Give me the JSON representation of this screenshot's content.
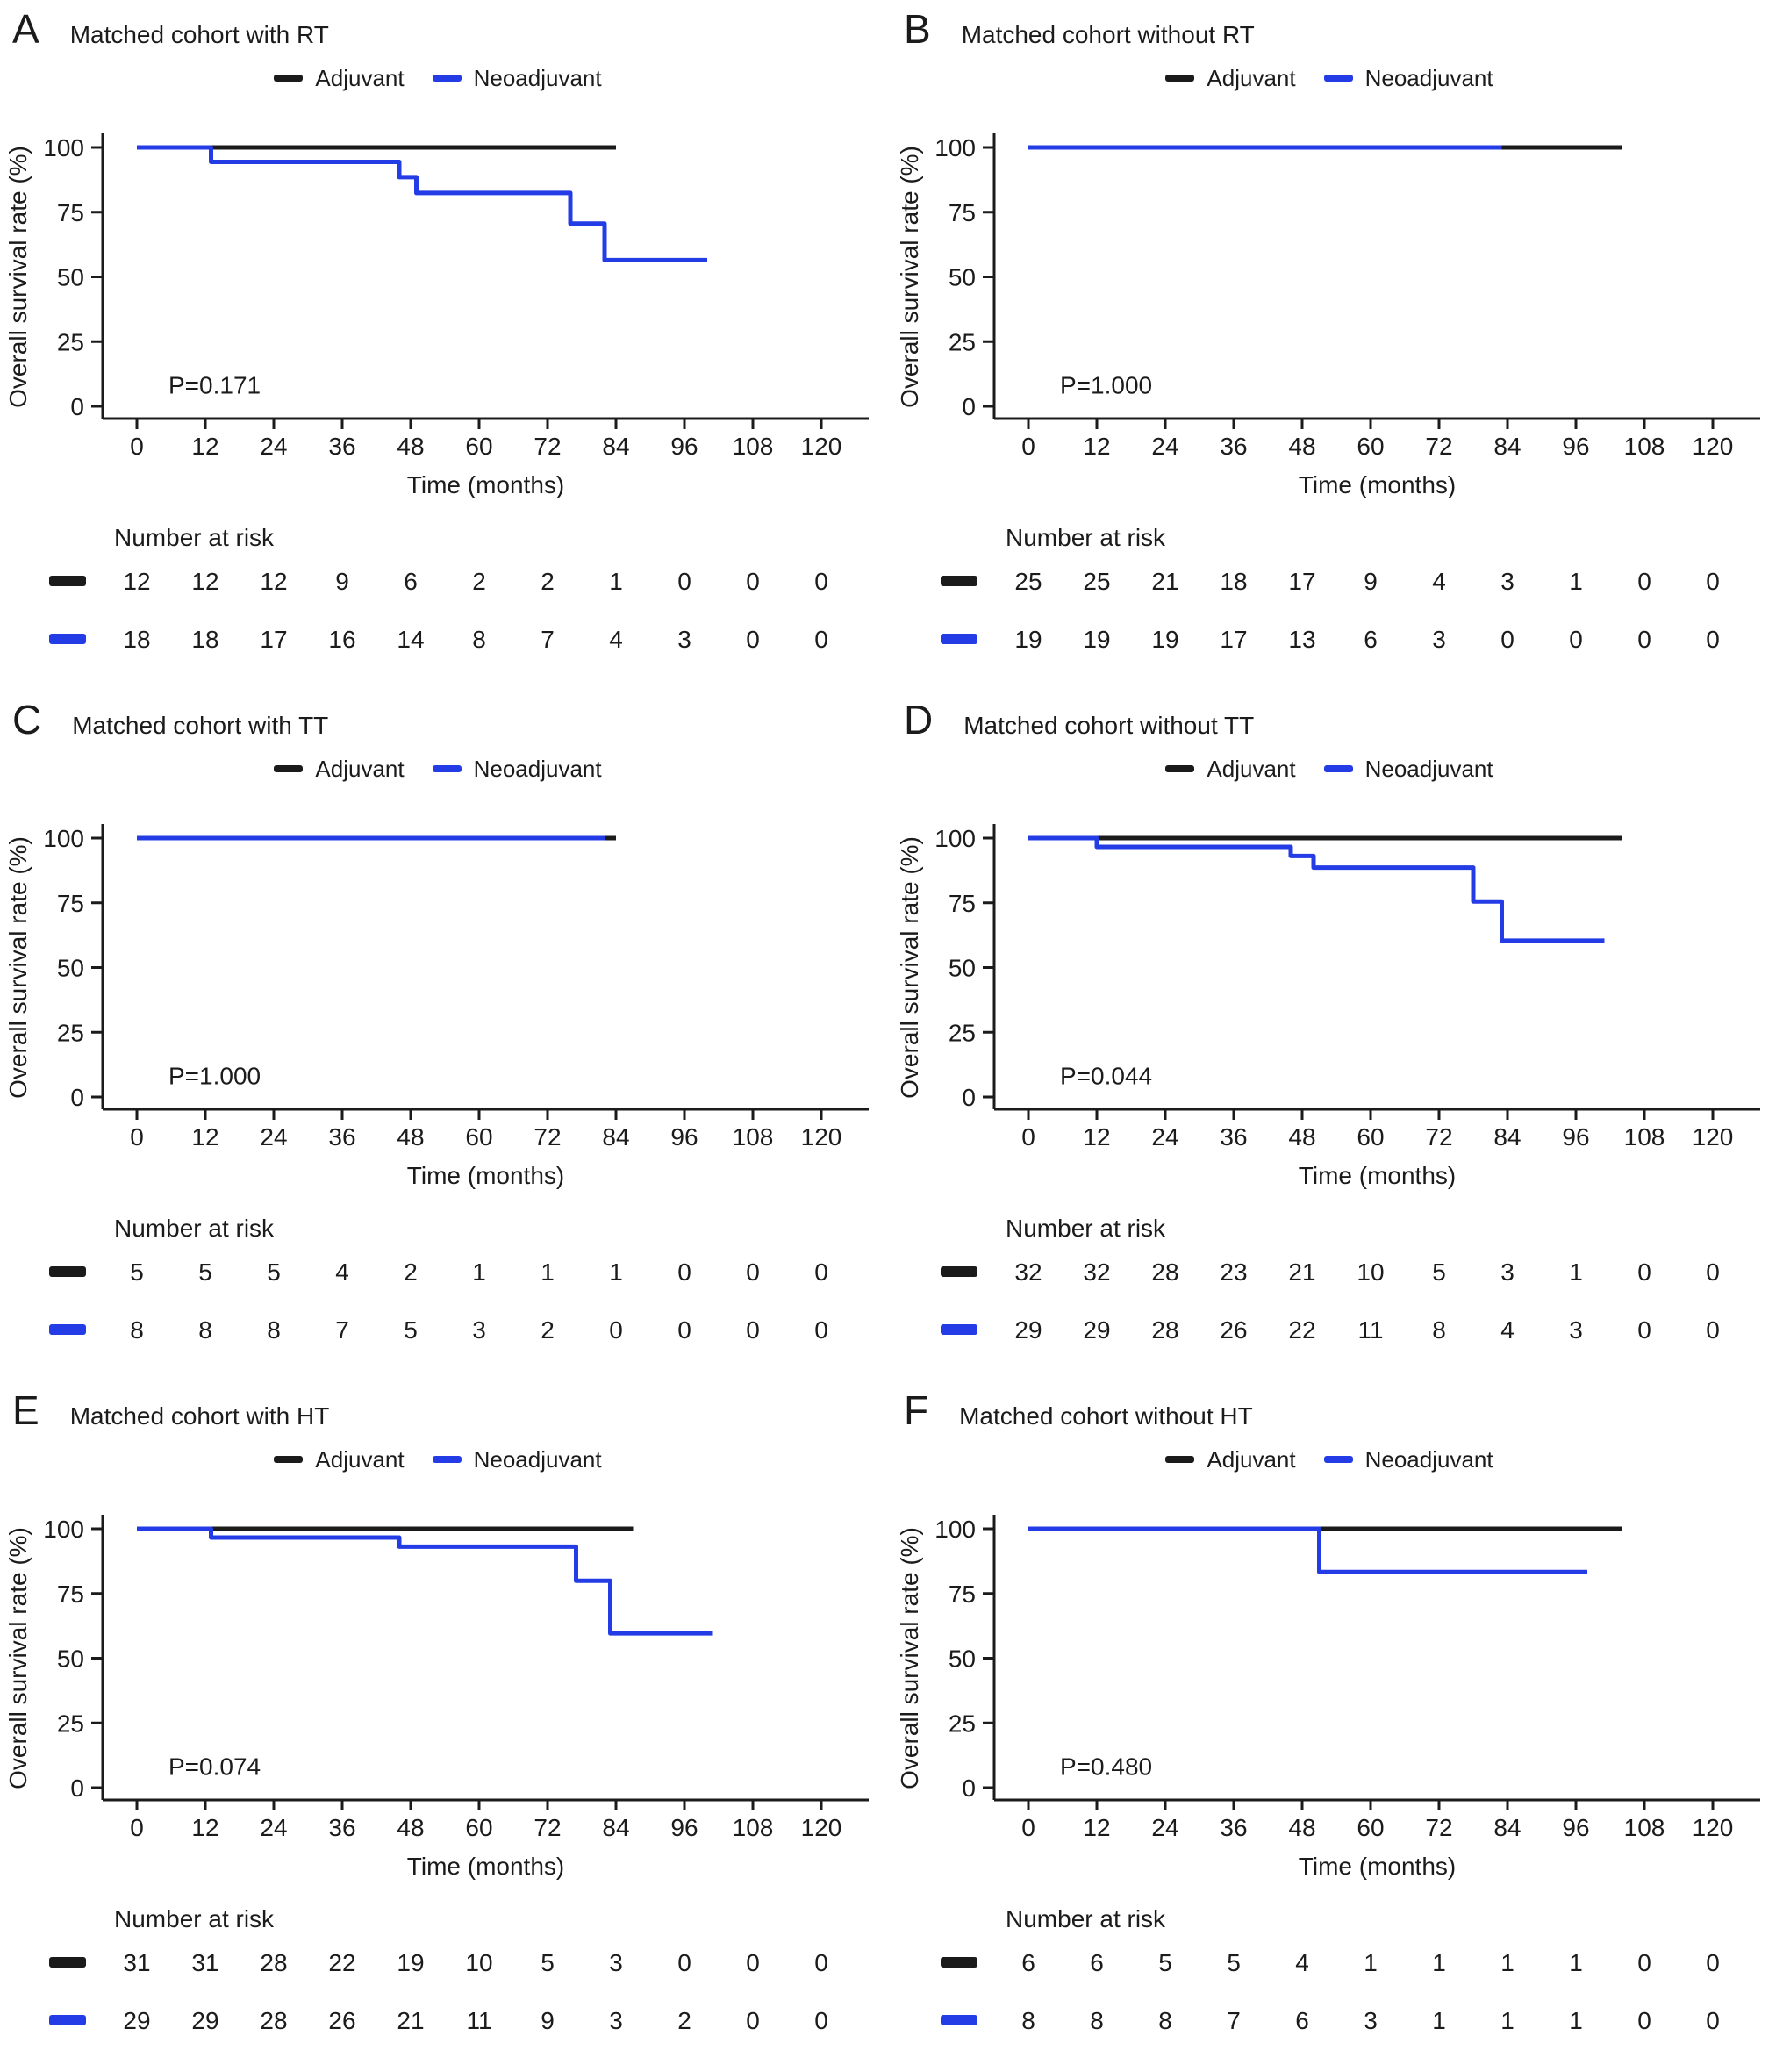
{
  "figure": {
    "legend": {
      "adjuvant_label": "Adjuvant",
      "neoadjuvant_label": "Neoadjuvant"
    },
    "y_axis_label": "Overall survival rate (%)",
    "x_axis_label": "Time (months)",
    "risk_header": "Number at risk",
    "colors": {
      "adjuvant": "#1b1b1b",
      "neoadjuvant": "#233CE6"
    }
  },
  "chart_data": [
    {
      "type": "line",
      "panel": "A",
      "title": "Matched cohort with RT",
      "p_value": "P=0.171",
      "xlabel": "Time (months)",
      "ylabel": "Overall survival rate (%)",
      "xlim": [
        0,
        120
      ],
      "ylim": [
        0,
        100
      ],
      "x_ticks": [
        0,
        12,
        24,
        36,
        48,
        60,
        72,
        84,
        96,
        108,
        120
      ],
      "y_ticks": [
        0,
        25,
        50,
        75,
        100
      ],
      "series": [
        {
          "name": "Adjuvant",
          "color": "#1b1b1b",
          "steps": [
            [
              0,
              100
            ],
            [
              84,
              100
            ]
          ]
        },
        {
          "name": "Neoadjuvant",
          "color": "#233CE6",
          "steps": [
            [
              0,
              100
            ],
            [
              13,
              94.4
            ],
            [
              46,
              88.5
            ],
            [
              49,
              82.4
            ],
            [
              76,
              70.6
            ],
            [
              82,
              56.5
            ],
            [
              100,
              56.5
            ]
          ]
        }
      ],
      "number_at_risk": {
        "times": [
          0,
          12,
          24,
          36,
          48,
          60,
          72,
          84,
          96,
          108,
          120
        ],
        "adjuvant": [
          12,
          12,
          12,
          9,
          6,
          2,
          2,
          1,
          0,
          0,
          0
        ],
        "neoadjuvant": [
          18,
          18,
          17,
          16,
          14,
          8,
          7,
          4,
          3,
          0,
          0
        ]
      }
    },
    {
      "type": "line",
      "panel": "B",
      "title": "Matched cohort without RT",
      "p_value": "P=1.000",
      "xlabel": "Time (months)",
      "ylabel": "Overall survival rate (%)",
      "xlim": [
        0,
        120
      ],
      "ylim": [
        0,
        100
      ],
      "x_ticks": [
        0,
        12,
        24,
        36,
        48,
        60,
        72,
        84,
        96,
        108,
        120
      ],
      "y_ticks": [
        0,
        25,
        50,
        75,
        100
      ],
      "series": [
        {
          "name": "Adjuvant",
          "color": "#1b1b1b",
          "steps": [
            [
              0,
              100
            ],
            [
              104,
              100
            ]
          ]
        },
        {
          "name": "Neoadjuvant",
          "color": "#233CE6",
          "steps": [
            [
              0,
              100
            ],
            [
              83,
              100
            ]
          ]
        }
      ],
      "number_at_risk": {
        "times": [
          0,
          12,
          24,
          36,
          48,
          60,
          72,
          84,
          96,
          108,
          120
        ],
        "adjuvant": [
          25,
          25,
          21,
          18,
          17,
          9,
          4,
          3,
          1,
          0,
          0
        ],
        "neoadjuvant": [
          19,
          19,
          19,
          17,
          13,
          6,
          3,
          0,
          0,
          0,
          0
        ]
      }
    },
    {
      "type": "line",
      "panel": "C",
      "title": "Matched cohort with TT",
      "p_value": "P=1.000",
      "xlabel": "Time (months)",
      "ylabel": "Overall survival rate (%)",
      "xlim": [
        0,
        120
      ],
      "ylim": [
        0,
        100
      ],
      "x_ticks": [
        0,
        12,
        24,
        36,
        48,
        60,
        72,
        84,
        96,
        108,
        120
      ],
      "y_ticks": [
        0,
        25,
        50,
        75,
        100
      ],
      "series": [
        {
          "name": "Adjuvant",
          "color": "#1b1b1b",
          "steps": [
            [
              0,
              100
            ],
            [
              84,
              100
            ]
          ]
        },
        {
          "name": "Neoadjuvant",
          "color": "#233CE6",
          "steps": [
            [
              0,
              100
            ],
            [
              82,
              100
            ]
          ]
        }
      ],
      "number_at_risk": {
        "times": [
          0,
          12,
          24,
          36,
          48,
          60,
          72,
          84,
          96,
          108,
          120
        ],
        "adjuvant": [
          5,
          5,
          5,
          4,
          2,
          1,
          1,
          1,
          0,
          0,
          0
        ],
        "neoadjuvant": [
          8,
          8,
          8,
          7,
          5,
          3,
          2,
          0,
          0,
          0,
          0
        ]
      }
    },
    {
      "type": "line",
      "panel": "D",
      "title": "Matched cohort without TT",
      "p_value": "P=0.044",
      "xlabel": "Time (months)",
      "ylabel": "Overall survival rate (%)",
      "xlim": [
        0,
        120
      ],
      "ylim": [
        0,
        100
      ],
      "x_ticks": [
        0,
        12,
        24,
        36,
        48,
        60,
        72,
        84,
        96,
        108,
        120
      ],
      "y_ticks": [
        0,
        25,
        50,
        75,
        100
      ],
      "series": [
        {
          "name": "Adjuvant",
          "color": "#1b1b1b",
          "steps": [
            [
              0,
              100
            ],
            [
              104,
              100
            ]
          ]
        },
        {
          "name": "Neoadjuvant",
          "color": "#233CE6",
          "steps": [
            [
              0,
              100
            ],
            [
              12,
              96.6
            ],
            [
              46,
              93.1
            ],
            [
              50,
              88.6
            ],
            [
              78,
              75.5
            ],
            [
              83,
              60.4
            ],
            [
              101,
              60.4
            ]
          ]
        }
      ],
      "number_at_risk": {
        "times": [
          0,
          12,
          24,
          36,
          48,
          60,
          72,
          84,
          96,
          108,
          120
        ],
        "adjuvant": [
          32,
          32,
          28,
          23,
          21,
          10,
          5,
          3,
          1,
          0,
          0
        ],
        "neoadjuvant": [
          29,
          29,
          28,
          26,
          22,
          11,
          8,
          4,
          3,
          0,
          0
        ]
      }
    },
    {
      "type": "line",
      "panel": "E",
      "title": "Matched cohort with HT",
      "p_value": "P=0.074",
      "xlabel": "Time (months)",
      "ylabel": "Overall survival rate (%)",
      "xlim": [
        0,
        120
      ],
      "ylim": [
        0,
        100
      ],
      "x_ticks": [
        0,
        12,
        24,
        36,
        48,
        60,
        72,
        84,
        96,
        108,
        120
      ],
      "y_ticks": [
        0,
        25,
        50,
        75,
        100
      ],
      "series": [
        {
          "name": "Adjuvant",
          "color": "#1b1b1b",
          "steps": [
            [
              0,
              100
            ],
            [
              87,
              100
            ]
          ]
        },
        {
          "name": "Neoadjuvant",
          "color": "#233CE6",
          "steps": [
            [
              0,
              100
            ],
            [
              13,
              96.6
            ],
            [
              46,
              93.1
            ],
            [
              77,
              79.9
            ],
            [
              83,
              59.6
            ],
            [
              101,
              59.6
            ]
          ]
        }
      ],
      "number_at_risk": {
        "times": [
          0,
          12,
          24,
          36,
          48,
          60,
          72,
          84,
          96,
          108,
          120
        ],
        "adjuvant": [
          31,
          31,
          28,
          22,
          19,
          10,
          5,
          3,
          0,
          0,
          0
        ],
        "neoadjuvant": [
          29,
          29,
          28,
          26,
          21,
          11,
          9,
          3,
          2,
          0,
          0
        ]
      }
    },
    {
      "type": "line",
      "panel": "F",
      "title": "Matched cohort without HT",
      "p_value": "P=0.480",
      "xlabel": "Time (months)",
      "ylabel": "Overall survival rate (%)",
      "xlim": [
        0,
        120
      ],
      "ylim": [
        0,
        100
      ],
      "x_ticks": [
        0,
        12,
        24,
        36,
        48,
        60,
        72,
        84,
        96,
        108,
        120
      ],
      "y_ticks": [
        0,
        25,
        50,
        75,
        100
      ],
      "series": [
        {
          "name": "Adjuvant",
          "color": "#1b1b1b",
          "steps": [
            [
              0,
              100
            ],
            [
              104,
              100
            ]
          ]
        },
        {
          "name": "Neoadjuvant",
          "color": "#233CE6",
          "steps": [
            [
              0,
              100
            ],
            [
              51,
              83.3
            ],
            [
              98,
              83.3
            ]
          ]
        }
      ],
      "number_at_risk": {
        "times": [
          0,
          12,
          24,
          36,
          48,
          60,
          72,
          84,
          96,
          108,
          120
        ],
        "adjuvant": [
          6,
          6,
          5,
          5,
          4,
          1,
          1,
          1,
          1,
          0,
          0
        ],
        "neoadjuvant": [
          8,
          8,
          8,
          7,
          6,
          3,
          1,
          1,
          1,
          0,
          0
        ]
      }
    }
  ]
}
